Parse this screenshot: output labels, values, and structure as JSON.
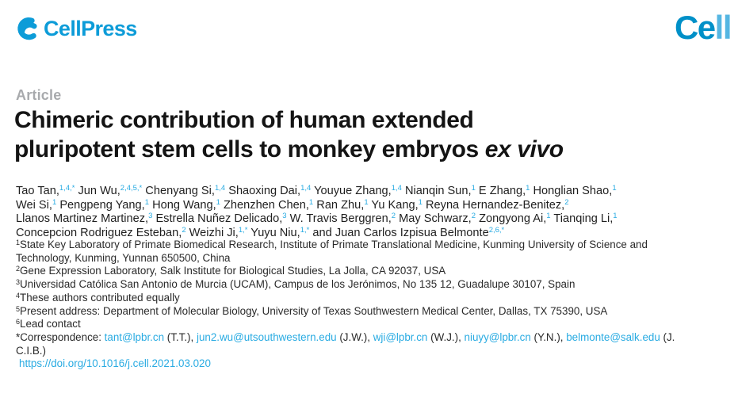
{
  "colors": {
    "brand_blue": "#0d9cd8",
    "link_blue": "#29abe2",
    "cell_logo_dark_blue": "#0090c8",
    "cell_logo_light_blue": "#55b6e2",
    "article_label_gray": "#a8aaad",
    "text_dark": "#1f1f1f"
  },
  "header": {
    "cellpress_text": "CellPress",
    "cell_logo_ce": "Ce",
    "cell_logo_ll": "ll"
  },
  "article_label": "Article",
  "title": {
    "line1": "Chimeric contribution of human extended",
    "line2_text": "pluripotent stem cells to monkey embryos ",
    "line2_italic": "ex vivo"
  },
  "authors": {
    "lines": [
      [
        {
          "t": "Tao Tan,",
          "s": "1,4,*"
        },
        {
          "t": " Jun Wu,",
          "s": "2,4,5,*"
        },
        {
          "t": " Chenyang Si,",
          "s": "1,4"
        },
        {
          "t": " Shaoxing Dai,",
          "s": "1,4"
        },
        {
          "t": " Youyue Zhang,",
          "s": "1,4"
        },
        {
          "t": " Nianqin Sun,",
          "s": "1"
        },
        {
          "t": " E Zhang,",
          "s": "1"
        },
        {
          "t": " Honglian Shao,",
          "s": "1"
        }
      ],
      [
        {
          "t": "Wei Si,",
          "s": "1"
        },
        {
          "t": " Pengpeng Yang,",
          "s": "1"
        },
        {
          "t": " Hong Wang,",
          "s": "1"
        },
        {
          "t": " Zhenzhen Chen,",
          "s": "1"
        },
        {
          "t": " Ran Zhu,",
          "s": "1"
        },
        {
          "t": " Yu Kang,",
          "s": "1"
        },
        {
          "t": " Reyna Hernandez-Benitez,",
          "s": "2"
        }
      ],
      [
        {
          "t": "Llanos Martinez Martinez,",
          "s": "3"
        },
        {
          "t": " Estrella Nuñez Delicado,",
          "s": "3"
        },
        {
          "t": " W. Travis Berggren,",
          "s": "2"
        },
        {
          "t": " May Schwarz,",
          "s": "2"
        },
        {
          "t": " Zongyong Ai,",
          "s": "1"
        },
        {
          "t": " Tianqing Li,",
          "s": "1"
        }
      ],
      [
        {
          "t": "Concepcion Rodriguez Esteban,",
          "s": "2"
        },
        {
          "t": " Weizhi Ji,",
          "s": "1,*"
        },
        {
          "t": " Yuyu Niu,",
          "s": "1,*"
        },
        {
          "t": " and Juan Carlos Izpisua Belmonte",
          "s": "2,6,*"
        }
      ]
    ]
  },
  "notes": {
    "lines": [
      [
        {
          "s": "1"
        },
        {
          "t": "State Key Laboratory of Primate Biomedical Research, Institute of Primate Translational Medicine, Kunming University of Science and"
        }
      ],
      [
        {
          "t": "Technology, Kunming, Yunnan 650500, China"
        }
      ],
      [
        {
          "s": "2"
        },
        {
          "t": "Gene Expression Laboratory, Salk Institute for Biological Studies, La Jolla, CA 92037, USA"
        }
      ],
      [
        {
          "s": "3"
        },
        {
          "t": "Universidad Católica San Antonio de Murcia (UCAM), Campus de los Jerónimos, No 135 12, Guadalupe 30107, Spain"
        }
      ],
      [
        {
          "s": "4"
        },
        {
          "t": "These authors contributed equally"
        }
      ],
      [
        {
          "s": "5"
        },
        {
          "t": "Present address: Department of Molecular Biology, University of Texas Southwestern Medical Center, Dallas, TX 75390, USA"
        }
      ],
      [
        {
          "s": "6"
        },
        {
          "t": "Lead contact"
        }
      ],
      [
        {
          "t": "*Correspondence: "
        },
        {
          "link": "tant@lpbr.cn"
        },
        {
          "t": " (T.T.), "
        },
        {
          "link": "jun2.wu@utsouthwestern.edu"
        },
        {
          "t": " (J.W.), "
        },
        {
          "link": "wji@lpbr.cn"
        },
        {
          "t": " (W.J.), "
        },
        {
          "link": "niuyy@lpbr.cn"
        },
        {
          "t": " (Y.N.), "
        },
        {
          "link": "belmonte@salk.edu"
        },
        {
          "t": " (J."
        }
      ],
      [
        {
          "t": "C.I.B.)"
        }
      ],
      [
        {
          "link": "https://doi.org/10.1016/j.cell.2021.03.020"
        }
      ]
    ]
  }
}
